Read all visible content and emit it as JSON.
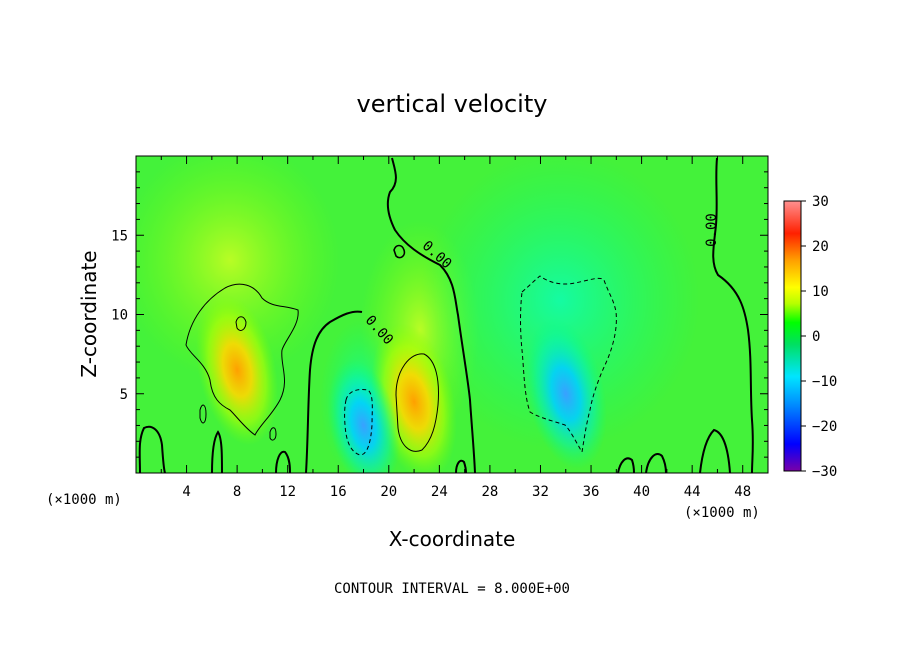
{
  "chart_data": {
    "type": "heatmap",
    "title": "vertical velocity",
    "xlabel": "X-coordinate",
    "ylabel": "Z-coordinate",
    "x_unit": "(×1000 m)",
    "xlim": [
      0,
      50
    ],
    "ylim": [
      0,
      20
    ],
    "xticks": [
      4,
      8,
      12,
      16,
      20,
      24,
      28,
      32,
      36,
      40,
      44,
      48
    ],
    "yticks": [
      5,
      10,
      15
    ],
    "colorbar": {
      "range": [
        -30,
        30
      ],
      "ticks": [
        30,
        20,
        10,
        0,
        -10,
        -20,
        -30
      ],
      "tick_labels": [
        "30",
        "20",
        "10",
        "0",
        "−10",
        "−20",
        "−30"
      ],
      "colors": [
        "#7a00a8",
        "#0000ff",
        "#0090ff",
        "#00e5ff",
        "#00e060",
        "#00ff00",
        "#b6ff00",
        "#ffff00",
        "#ffa000",
        "#ff2000",
        "#ff9090"
      ]
    },
    "contour_interval_label": "CONTOUR INTERVAL = 8.000E+00",
    "contour_labels": [
      "0.00",
      "0.00",
      "0.00"
    ],
    "features": [
      {
        "kind": "updraft",
        "x": 8,
        "z": 6.5,
        "peak": 13
      },
      {
        "kind": "updraft",
        "x": 22,
        "z": 4.5,
        "peak": 14
      },
      {
        "kind": "downdraft",
        "x": 18,
        "z": 3,
        "peak": -10
      },
      {
        "kind": "downdraft",
        "x": 34,
        "z": 5,
        "peak": -13
      }
    ]
  }
}
